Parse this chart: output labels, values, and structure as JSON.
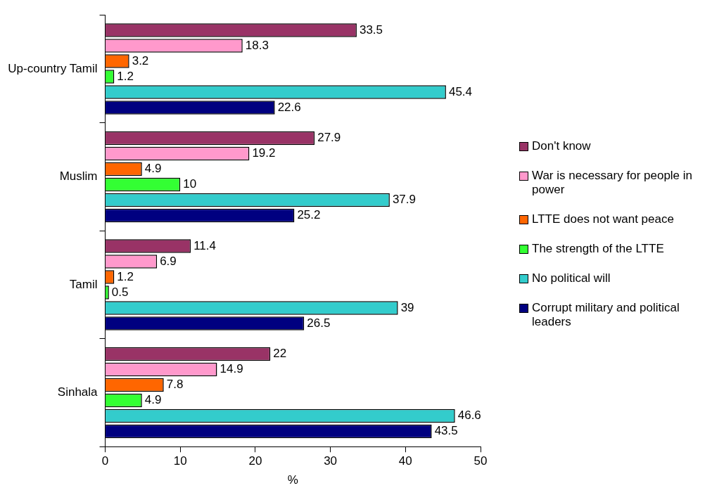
{
  "chart_data": {
    "type": "bar",
    "orientation": "horizontal",
    "xlabel": "%",
    "categories": [
      "Up-country Tamil",
      "Muslim",
      "Tamil",
      "Sinhala"
    ],
    "series": [
      {
        "name": "Don't know",
        "color": "#993366",
        "values": [
          33.5,
          27.9,
          11.4,
          22
        ]
      },
      {
        "name": "War is necessary for people in power",
        "color": "#ff99cc",
        "values": [
          18.3,
          19.2,
          6.9,
          14.9
        ]
      },
      {
        "name": "LTTE does not want peace",
        "color": "#ff6600",
        "values": [
          3.2,
          4.9,
          1.2,
          7.8
        ]
      },
      {
        "name": "The strength of the LTTE",
        "color": "#33ff33",
        "values": [
          1.2,
          10,
          0.5,
          4.9
        ]
      },
      {
        "name": "No political will",
        "color": "#33cccc",
        "values": [
          45.4,
          37.9,
          39,
          46.6
        ]
      },
      {
        "name": "Corrupt military and political leaders",
        "color": "#000080",
        "values": [
          22.6,
          25.2,
          26.5,
          43.5
        ]
      }
    ],
    "xlim": [
      0,
      50
    ],
    "xticks": [
      0,
      10,
      20,
      30,
      40,
      50
    ],
    "grid": false,
    "legend": "right",
    "data_labels": true
  }
}
